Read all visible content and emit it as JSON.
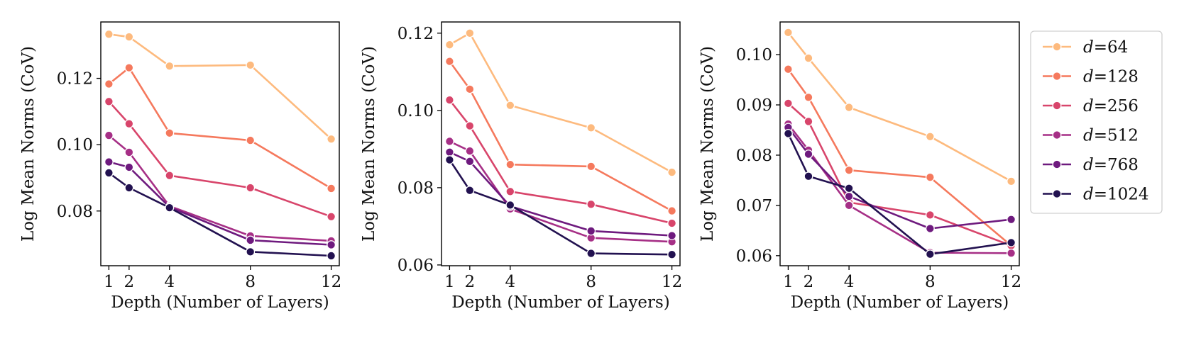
{
  "chart_data": [
    {
      "type": "line",
      "xlabel": "Depth (Number of Layers)",
      "ylabel": "Log Mean Norms (CoV)",
      "x": [
        1,
        2,
        4,
        8,
        12
      ],
      "xticks": [
        "1",
        "2",
        "4",
        "8",
        "12"
      ],
      "xlim": [
        0.6,
        12.4
      ],
      "ylim": [
        0.0635,
        0.137
      ],
      "yticks": [
        {
          "value": 0.08,
          "label": "0.08"
        },
        {
          "value": 0.1,
          "label": "0.10"
        },
        {
          "value": 0.12,
          "label": "0.12"
        }
      ],
      "series": [
        {
          "name": "d=64",
          "values": [
            0.1333,
            0.1325,
            0.1237,
            0.124,
            0.1017
          ]
        },
        {
          "name": "d=128",
          "values": [
            0.1183,
            0.1232,
            0.1035,
            0.1013,
            0.0868
          ]
        },
        {
          "name": "d=256",
          "values": [
            0.113,
            0.1063,
            0.0907,
            0.087,
            0.0783
          ]
        },
        {
          "name": "d=512",
          "values": [
            0.1028,
            0.0977,
            0.0815,
            0.0725,
            0.071
          ]
        },
        {
          "name": "d=768",
          "values": [
            0.0948,
            0.0932,
            0.0812,
            0.0712,
            0.0698
          ]
        },
        {
          "name": "d=1024",
          "values": [
            0.0915,
            0.087,
            0.081,
            0.0677,
            0.0665
          ]
        }
      ]
    },
    {
      "type": "line",
      "xlabel": "Depth (Number of Layers)",
      "ylabel": "Log Mean Norms (CoV)",
      "x": [
        1,
        2,
        4,
        8,
        12
      ],
      "xticks": [
        "1",
        "2",
        "4",
        "8",
        "12"
      ],
      "xlim": [
        0.6,
        12.4
      ],
      "ylim": [
        0.0598,
        0.1229
      ],
      "yticks": [
        {
          "value": 0.06,
          "label": "0.06"
        },
        {
          "value": 0.08,
          "label": "0.08"
        },
        {
          "value": 0.1,
          "label": "0.10"
        },
        {
          "value": 0.12,
          "label": "0.12"
        }
      ],
      "series": [
        {
          "name": "d=64",
          "values": [
            0.117,
            0.12,
            0.1013,
            0.0955,
            0.084
          ]
        },
        {
          "name": "d=128",
          "values": [
            0.1127,
            0.1055,
            0.086,
            0.0855,
            0.074
          ]
        },
        {
          "name": "d=256",
          "values": [
            0.1027,
            0.096,
            0.079,
            0.0757,
            0.0708
          ]
        },
        {
          "name": "d=512",
          "values": [
            0.092,
            0.0895,
            0.0745,
            0.067,
            0.066
          ]
        },
        {
          "name": "d=768",
          "values": [
            0.0892,
            0.0868,
            0.0752,
            0.0688,
            0.0676
          ]
        },
        {
          "name": "d=1024",
          "values": [
            0.0872,
            0.0793,
            0.0755,
            0.063,
            0.0627
          ]
        }
      ]
    },
    {
      "type": "line",
      "xlabel": "Depth (Number of Layers)",
      "ylabel": "Log Mean Norms (CoV)",
      "x": [
        1,
        2,
        4,
        8,
        12
      ],
      "xticks": [
        "1",
        "2",
        "4",
        "8",
        "12"
      ],
      "xlim": [
        0.6,
        12.4
      ],
      "ylim": [
        0.058,
        0.1065
      ],
      "yticks": [
        {
          "value": 0.06,
          "label": "0.06"
        },
        {
          "value": 0.07,
          "label": "0.07"
        },
        {
          "value": 0.08,
          "label": "0.08"
        },
        {
          "value": 0.09,
          "label": "0.09"
        },
        {
          "value": 0.1,
          "label": "0.10"
        }
      ],
      "series": [
        {
          "name": "d=64",
          "values": [
            0.1044,
            0.0993,
            0.0895,
            0.0837,
            0.0748
          ]
        },
        {
          "name": "d=128",
          "values": [
            0.0971,
            0.0915,
            0.077,
            0.0756,
            0.062
          ]
        },
        {
          "name": "d=256",
          "values": [
            0.0903,
            0.0867,
            0.0706,
            0.0681,
            0.062
          ]
        },
        {
          "name": "d=512",
          "values": [
            0.0862,
            0.081,
            0.07,
            0.0606,
            0.0605
          ]
        },
        {
          "name": "d=768",
          "values": [
            0.0855,
            0.0802,
            0.0718,
            0.0654,
            0.0672
          ]
        },
        {
          "name": "d=1024",
          "values": [
            0.0843,
            0.0758,
            0.0734,
            0.0603,
            0.0626
          ]
        }
      ]
    }
  ],
  "legend": {
    "placement": "right",
    "entries": [
      {
        "prefix": "d",
        "suffix": "=64"
      },
      {
        "prefix": "d",
        "suffix": "=128"
      },
      {
        "prefix": "d",
        "suffix": "=256"
      },
      {
        "prefix": "d",
        "suffix": "=512"
      },
      {
        "prefix": "d",
        "suffix": "=768"
      },
      {
        "prefix": "d",
        "suffix": "=1024"
      }
    ]
  },
  "colors": {
    "series": [
      "#fdba7e",
      "#f5795d",
      "#d8456b",
      "#a62f86",
      "#6e1a7e",
      "#221150"
    ]
  }
}
